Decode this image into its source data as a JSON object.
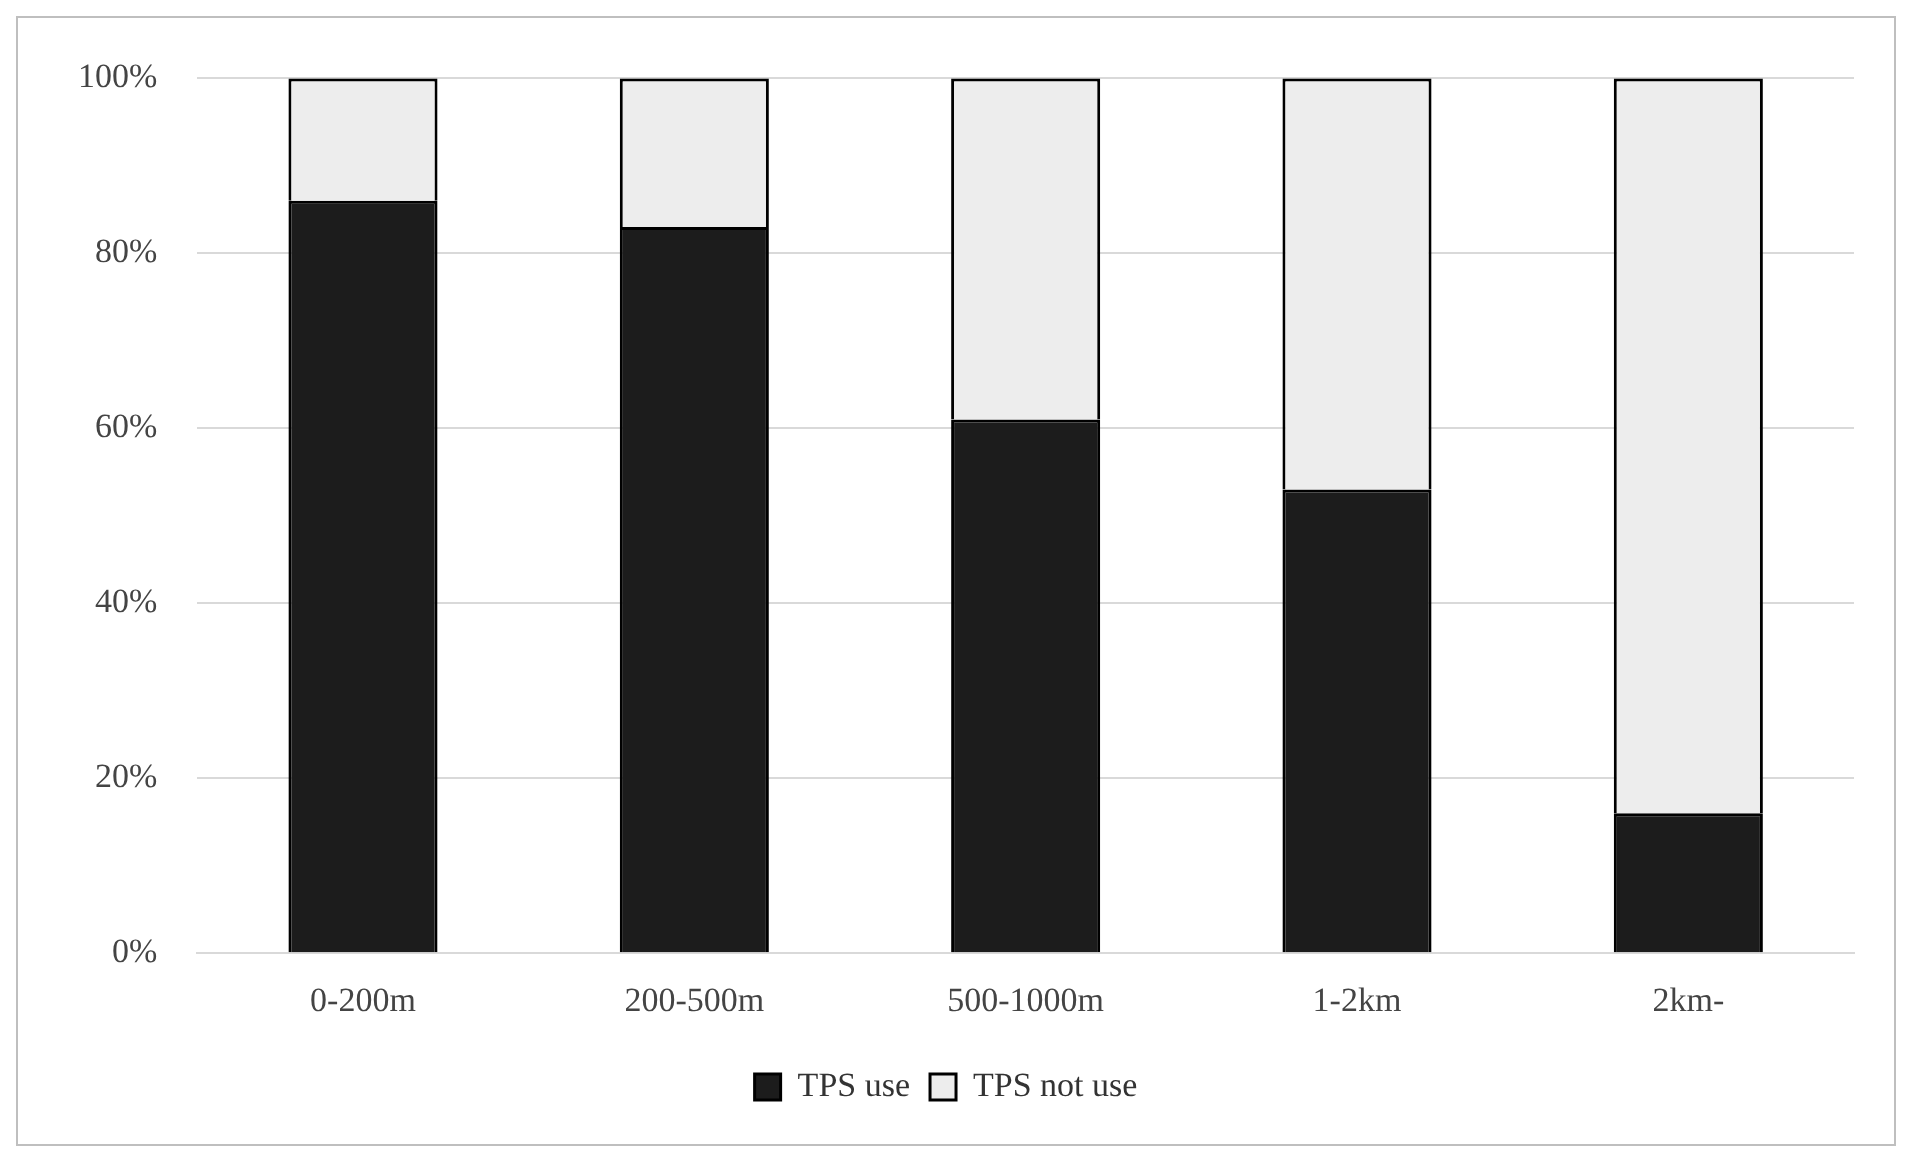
{
  "chart_data": {
    "type": "bar",
    "stacked": true,
    "categories": [
      "0-200m",
      "200-500m",
      "500-1000m",
      "1-2km",
      "2km-"
    ],
    "series": [
      {
        "name": "TPS use",
        "color": "#1c1c1c",
        "values": [
          86,
          83,
          61,
          53,
          16
        ]
      },
      {
        "name": "TPS not use",
        "color": "#ededed",
        "values": [
          14,
          17,
          39,
          47,
          84
        ]
      }
    ],
    "ylim": [
      0,
      100
    ],
    "yticks": [
      {
        "value": 0,
        "label": "0%"
      },
      {
        "value": 20,
        "label": "20%"
      },
      {
        "value": 40,
        "label": "40%"
      },
      {
        "value": 60,
        "label": "60%"
      },
      {
        "value": 80,
        "label": "80%"
      },
      {
        "value": 100,
        "label": "100%"
      }
    ],
    "grid": "y",
    "legend": "bottom"
  }
}
